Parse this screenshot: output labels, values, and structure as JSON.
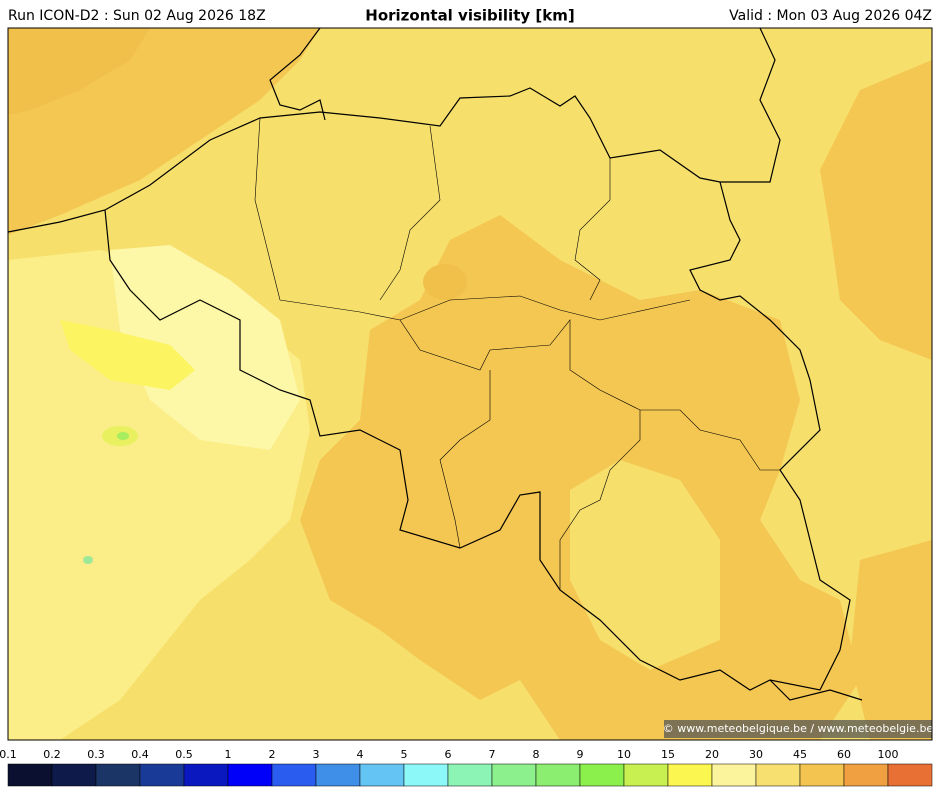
{
  "header": {
    "run": "Run ICON-D2 : Sun 02 Aug 2026 18Z",
    "title": "Horizontal visibility [km]",
    "valid": "Valid : Mon 03 Aug 2026 04Z"
  },
  "credit": "© www.meteobelgique.be / www.meteobelgie.be",
  "colorbar": {
    "labels": [
      0.1,
      0.2,
      0.3,
      0.4,
      0.5,
      1,
      2,
      3,
      4,
      5,
      6,
      7,
      8,
      9,
      10,
      15,
      20,
      30,
      45,
      60,
      100
    ],
    "colors": [
      "#0b1030",
      "#0e1b4a",
      "#1b3566",
      "#1a3a98",
      "#0a18c0",
      "#0000fa",
      "#2a5cf0",
      "#3f8ee8",
      "#64c4f4",
      "#8cf8f8",
      "#8cf4b4",
      "#8cf08c",
      "#8cee70",
      "#8cf04c",
      "#c8f050",
      "#fcf650",
      "#fcf49c",
      "#f8e070",
      "#f4c450",
      "#f0a040",
      "#e87034"
    ]
  }
}
